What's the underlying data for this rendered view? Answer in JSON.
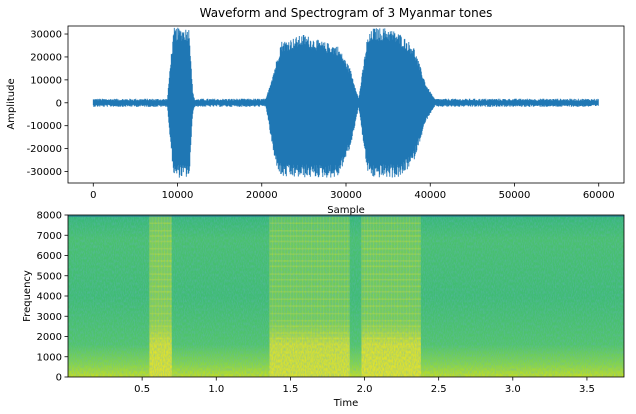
{
  "chart_data": [
    {
      "type": "line",
      "title": "Waveform and Spectrogram of 3 Myanmar tones",
      "xlabel": "Sample",
      "ylabel": "Amplitude",
      "xlim": [
        -3000,
        63000
      ],
      "ylim": [
        -35000,
        33500
      ],
      "xticks": [
        0,
        10000,
        20000,
        30000,
        40000,
        50000,
        60000
      ],
      "yticks": [
        -30000,
        -20000,
        -10000,
        0,
        10000,
        20000,
        30000
      ],
      "line_color": "#1f77b4",
      "noise_amplitude": 1800,
      "segments": [
        {
          "x": [
            8800,
            9200,
            9600,
            11400,
            11800,
            12000
          ],
          "upper": [
            1800,
            20000,
            32767,
            32767,
            5000,
            1800
          ],
          "lower": [
            -1800,
            -20000,
            -32768,
            -32768,
            -5000,
            -1800
          ]
        },
        {
          "x": [
            20500,
            21500,
            22300,
            23500,
            25000,
            27000,
            29000,
            30500,
            31500
          ],
          "upper": [
            1800,
            15000,
            27000,
            28000,
            30000,
            27000,
            25000,
            15000,
            1800
          ],
          "lower": [
            -1800,
            -25000,
            -32768,
            -32768,
            -32768,
            -32768,
            -32768,
            -20000,
            -1800
          ]
        },
        {
          "x": [
            31500,
            32500,
            33200,
            35000,
            36500,
            38000,
            39500,
            40500
          ],
          "upper": [
            1800,
            28000,
            32767,
            32767,
            30000,
            25000,
            8000,
            1800
          ],
          "lower": [
            -1800,
            -30000,
            -32768,
            -32768,
            -32768,
            -26000,
            -8000,
            -1800
          ]
        }
      ]
    },
    {
      "type": "heatmap",
      "xlabel": "Time",
      "ylabel": "Frequency",
      "xlim": [
        0,
        3.75
      ],
      "ylim": [
        0,
        8000
      ],
      "xticks": [
        "0.5",
        "1.0",
        "1.5",
        "2.0",
        "2.5",
        "3.0",
        "3.5"
      ],
      "yticks": [
        "0",
        "1000",
        "2000",
        "3000",
        "4000",
        "5000",
        "6000",
        "7000",
        "8000"
      ],
      "colormap": "viridis",
      "background_level": 0.55,
      "tone_regions": [
        {
          "t_start": 0.55,
          "t_end": 0.7,
          "low_band_level": 0.92,
          "high_band_level": 0.8
        },
        {
          "t_start": 1.36,
          "t_end": 1.9,
          "low_band_level": 0.9,
          "high_band_level": 0.7
        },
        {
          "t_start": 1.98,
          "t_end": 2.38,
          "low_band_level": 0.92,
          "high_band_level": 0.72
        }
      ]
    }
  ]
}
